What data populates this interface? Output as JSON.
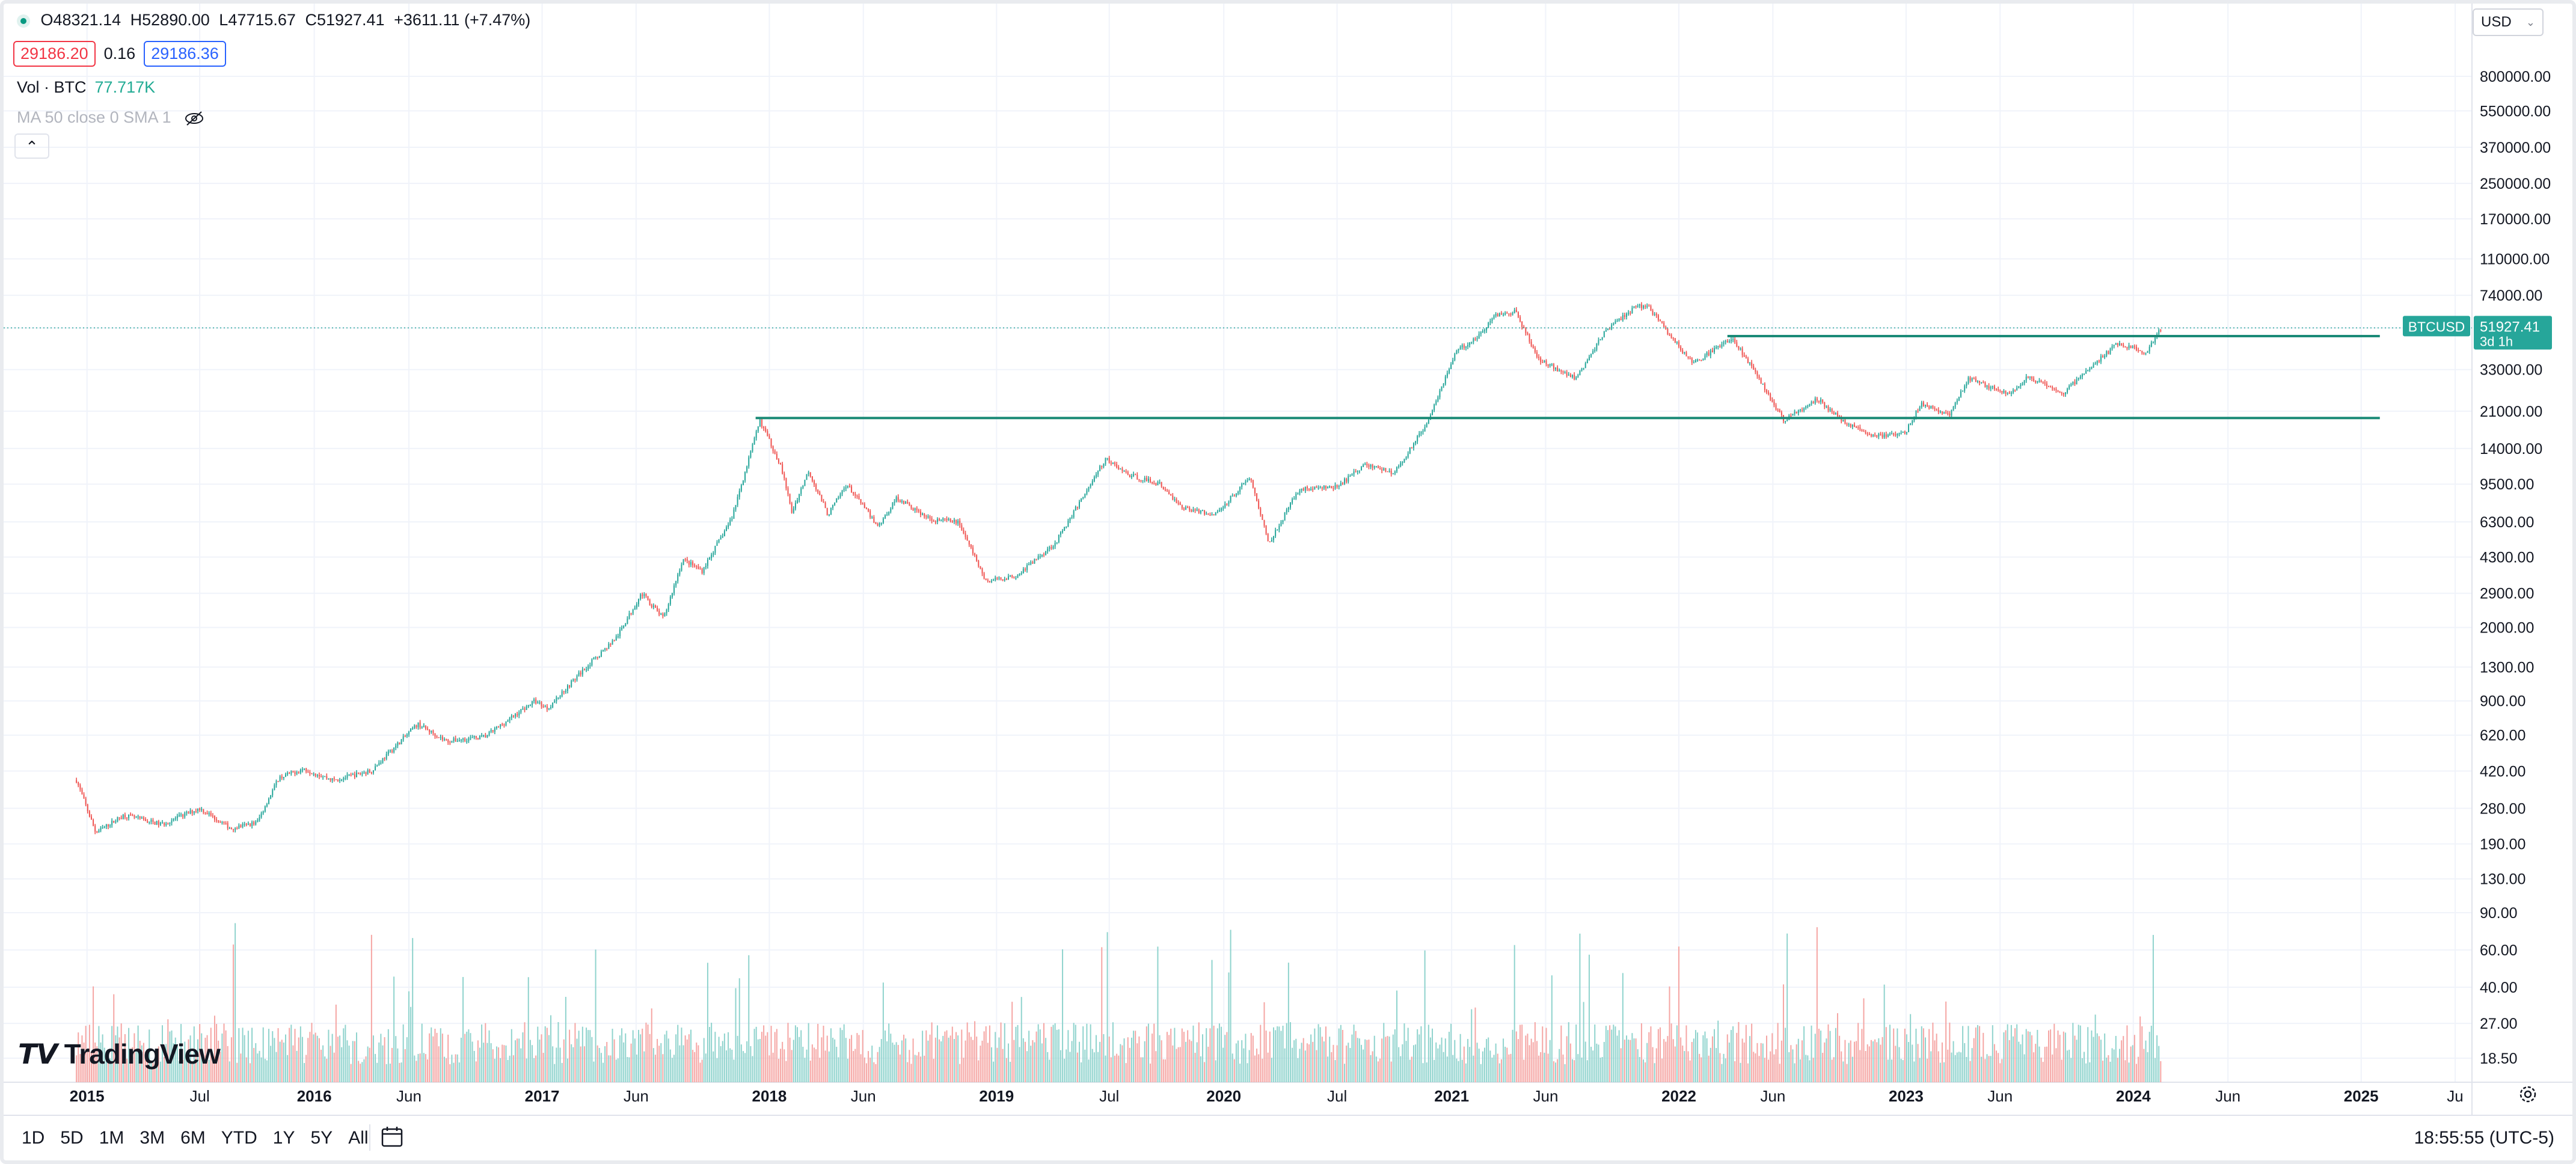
{
  "legend": {
    "open": "O48321.14",
    "high": "H52890.00",
    "low": "L47715.67",
    "close": "C51927.41",
    "change": "+3611.11 (+7.47%)"
  },
  "quote": {
    "bid": "29186.20",
    "spread": "0.16",
    "ask": "29186.36"
  },
  "volume_indicator": {
    "label": "Vol · BTC",
    "value": "77.717K"
  },
  "ma_indicator": {
    "label": "MA 50 close 0 SMA 1"
  },
  "currency": "USD",
  "price_tag": {
    "symbol": "BTCUSD",
    "price": "51927.41",
    "countdown": "3d 1h"
  },
  "range_buttons": [
    "1D",
    "5D",
    "1M",
    "3M",
    "6M",
    "YTD",
    "1Y",
    "5Y",
    "All"
  ],
  "clock": "18:55:55 (UTC-5)",
  "brand": "TradingView",
  "colors": {
    "up": "#26a69a",
    "down": "#ef5350",
    "vol_up": "#8fd3cd",
    "vol_down": "#f5a5a3",
    "line": "#1a8a77",
    "grid": "#f0f3fa"
  },
  "chart_data": {
    "type": "candlestick",
    "title": "",
    "y_scale": "log",
    "y_ticks": [
      18.5,
      27.0,
      40.0,
      60.0,
      90.0,
      130.0,
      190.0,
      280.0,
      420.0,
      620.0,
      900.0,
      1300.0,
      2000.0,
      2900.0,
      4300.0,
      6300.0,
      9500.0,
      14000.0,
      21000.0,
      33000.0,
      51927.41,
      74000.0,
      110000.0,
      170000.0,
      250000.0,
      370000.0,
      550000.0,
      800000.0
    ],
    "x_ticks": [
      {
        "label": "2015",
        "date": "2015-01-01",
        "bold": true
      },
      {
        "label": "Jul",
        "date": "2015-07-01",
        "bold": false
      },
      {
        "label": "2016",
        "date": "2016-01-01",
        "bold": true
      },
      {
        "label": "Jun",
        "date": "2016-06-01",
        "bold": false
      },
      {
        "label": "2017",
        "date": "2017-01-01",
        "bold": true
      },
      {
        "label": "Jun",
        "date": "2017-06-01",
        "bold": false
      },
      {
        "label": "2018",
        "date": "2018-01-01",
        "bold": true
      },
      {
        "label": "Jun",
        "date": "2018-06-01",
        "bold": false
      },
      {
        "label": "2019",
        "date": "2019-01-01",
        "bold": true
      },
      {
        "label": "Jul",
        "date": "2019-07-01",
        "bold": false
      },
      {
        "label": "2020",
        "date": "2020-01-01",
        "bold": true
      },
      {
        "label": "Jul",
        "date": "2020-07-01",
        "bold": false
      },
      {
        "label": "2021",
        "date": "2021-01-01",
        "bold": true
      },
      {
        "label": "Jun",
        "date": "2021-06-01",
        "bold": false
      },
      {
        "label": "2022",
        "date": "2022-01-01",
        "bold": true
      },
      {
        "label": "Jun",
        "date": "2022-06-01",
        "bold": false
      },
      {
        "label": "2023",
        "date": "2023-01-01",
        "bold": true
      },
      {
        "label": "Jun",
        "date": "2023-06-01",
        "bold": false
      },
      {
        "label": "2024",
        "date": "2024-01-01",
        "bold": true
      },
      {
        "label": "Jun",
        "date": "2024-06-01",
        "bold": false
      },
      {
        "label": "2025",
        "date": "2025-01-01",
        "bold": true
      },
      {
        "label": "Ju",
        "date": "2025-06-01",
        "bold": false
      }
    ],
    "series": [
      {
        "name": "BTCUSD",
        "approx_close_path": [
          [
            "2014-12-15",
            380
          ],
          [
            "2015-01-15",
            215
          ],
          [
            "2015-03-01",
            260
          ],
          [
            "2015-05-01",
            235
          ],
          [
            "2015-07-01",
            280
          ],
          [
            "2015-08-20",
            225
          ],
          [
            "2015-10-01",
            240
          ],
          [
            "2015-11-05",
            390
          ],
          [
            "2015-12-15",
            430
          ],
          [
            "2016-02-01",
            380
          ],
          [
            "2016-04-01",
            420
          ],
          [
            "2016-06-15",
            700
          ],
          [
            "2016-08-01",
            580
          ],
          [
            "2016-10-01",
            610
          ],
          [
            "2016-12-20",
            900
          ],
          [
            "2017-01-10",
            830
          ],
          [
            "2017-03-01",
            1200
          ],
          [
            "2017-05-01",
            1800
          ],
          [
            "2017-06-10",
            2900
          ],
          [
            "2017-07-15",
            2200
          ],
          [
            "2017-08-15",
            4200
          ],
          [
            "2017-09-15",
            3700
          ],
          [
            "2017-11-01",
            6500
          ],
          [
            "2017-12-17",
            19000
          ],
          [
            "2018-01-20",
            11500
          ],
          [
            "2018-02-06",
            7000
          ],
          [
            "2018-03-05",
            11000
          ],
          [
            "2018-04-05",
            6800
          ],
          [
            "2018-05-05",
            9500
          ],
          [
            "2018-06-25",
            6000
          ],
          [
            "2018-07-25",
            8200
          ],
          [
            "2018-09-15",
            6500
          ],
          [
            "2018-11-01",
            6300
          ],
          [
            "2018-12-15",
            3300
          ],
          [
            "2019-02-01",
            3500
          ],
          [
            "2019-04-05",
            5000
          ],
          [
            "2019-06-25",
            12500
          ],
          [
            "2019-08-01",
            10500
          ],
          [
            "2019-09-20",
            9500
          ],
          [
            "2019-10-25",
            7400
          ],
          [
            "2019-12-18",
            6800
          ],
          [
            "2020-02-12",
            10300
          ],
          [
            "2020-03-13",
            5000
          ],
          [
            "2020-05-01",
            9000
          ],
          [
            "2020-07-01",
            9200
          ],
          [
            "2020-08-15",
            11800
          ],
          [
            "2020-10-01",
            10700
          ],
          [
            "2020-11-20",
            18000
          ],
          [
            "2021-01-08",
            40000
          ],
          [
            "2021-02-15",
            48000
          ],
          [
            "2021-03-13",
            60000
          ],
          [
            "2021-04-14",
            62000
          ],
          [
            "2021-05-20",
            37000
          ],
          [
            "2021-07-20",
            30000
          ],
          [
            "2021-09-06",
            51000
          ],
          [
            "2021-10-20",
            64000
          ],
          [
            "2021-11-10",
            67000
          ],
          [
            "2021-12-20",
            47000
          ],
          [
            "2022-01-24",
            35000
          ],
          [
            "2022-03-28",
            47000
          ],
          [
            "2022-05-12",
            29000
          ],
          [
            "2022-06-18",
            19000
          ],
          [
            "2022-08-12",
            24000
          ],
          [
            "2022-09-20",
            19000
          ],
          [
            "2022-11-09",
            16000
          ],
          [
            "2022-12-30",
            16500
          ],
          [
            "2023-01-25",
            23000
          ],
          [
            "2023-03-10",
            20000
          ],
          [
            "2023-04-12",
            30000
          ],
          [
            "2023-06-15",
            25000
          ],
          [
            "2023-07-15",
            30500
          ],
          [
            "2023-09-10",
            25500
          ],
          [
            "2023-10-25",
            34000
          ],
          [
            "2023-12-08",
            44000
          ],
          [
            "2024-01-22",
            39500
          ],
          [
            "2024-02-15",
            51927.41
          ]
        ]
      }
    ],
    "volume_series": {
      "name": "Vol · BTC",
      "last": "77.717K"
    },
    "horizontal_lines": [
      {
        "price": 19500,
        "from": "2017-12-10",
        "to": "2025-01-31"
      },
      {
        "price": 47500,
        "from": "2022-03-20",
        "to": "2025-01-31"
      }
    ]
  }
}
